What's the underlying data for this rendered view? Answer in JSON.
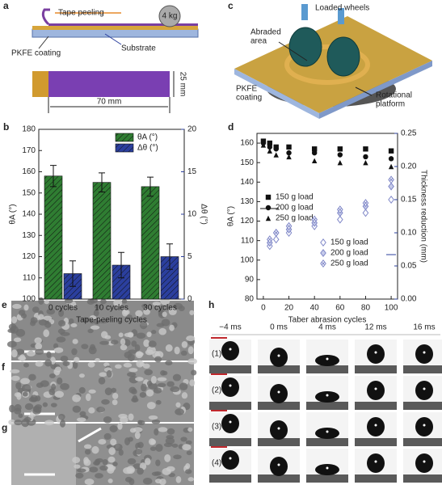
{
  "panel_letters": [
    "a",
    "b",
    "c",
    "d",
    "e",
    "f",
    "g",
    "h"
  ],
  "panel_a": {
    "tape_peeling": "Tape peeling",
    "weight": "4 kg",
    "coating": "PKFE coating",
    "substrate": "Substrate",
    "width": "25 mm",
    "length": "70 mm"
  },
  "panel_c": {
    "wheels": "Loaded wheels",
    "area": [
      "Abraded",
      "area"
    ],
    "coating": [
      "PKFE",
      "coating"
    ],
    "platform": [
      "Rotational",
      "platform"
    ]
  },
  "panel_h": {
    "times": [
      "−4 ms",
      "0 ms",
      "4 ms",
      "12 ms",
      "16 ms"
    ],
    "rows": [
      "(1)",
      "(2)",
      "(3)",
      "(4)"
    ]
  },
  "chart_data": [
    {
      "type": "bar",
      "xlabel": "Tape-peeling cycles",
      "ylabel": "θA (°)",
      "y2label": "Δθ (°)",
      "categories": [
        "0 cycles",
        "10 cycles",
        "30 cycles"
      ],
      "series": [
        {
          "name": "θA (°)",
          "color": "#2f7d32",
          "values": [
            158,
            155,
            153
          ],
          "errors": [
            5,
            4.5,
            4.5
          ]
        },
        {
          "name": "Δθ (°)",
          "color": "#2b3f9e",
          "axis": "y2",
          "values": [
            3,
            4,
            5
          ],
          "errors": [
            1.5,
            1.5,
            1.5
          ]
        }
      ],
      "ylim": [
        100,
        180
      ],
      "yticks": [
        100,
        110,
        120,
        130,
        140,
        150,
        160,
        170,
        180
      ],
      "y2lim": [
        0,
        20
      ],
      "y2ticks": [
        0,
        5,
        10,
        15,
        20
      ],
      "legend": "upper right"
    },
    {
      "type": "scatter",
      "xlabel": "Taber abrasion cycles",
      "ylabel": "θA (°)",
      "y2label": "Thickness reduction (mm)",
      "series": [
        {
          "name": "150 g load",
          "color": "#111111",
          "marker": "square",
          "x": [
            0,
            5,
            10,
            20,
            40,
            60,
            80,
            100
          ],
          "values": [
            161,
            160,
            158,
            158,
            157,
            157,
            157,
            156
          ]
        },
        {
          "name": "200 g load",
          "color": "#111111",
          "marker": "circle",
          "x": [
            0,
            5,
            10,
            20,
            40,
            60,
            80,
            100
          ],
          "values": [
            160,
            158,
            157,
            155,
            155,
            154,
            153,
            152
          ]
        },
        {
          "name": "250 g load",
          "color": "#111111",
          "marker": "triangle",
          "x": [
            0,
            5,
            10,
            20,
            40,
            60,
            80,
            100
          ],
          "values": [
            159,
            156,
            154,
            153,
            151,
            150,
            150,
            148
          ]
        },
        {
          "name": "150 g load",
          "color": "#8088c8",
          "marker": "diamond-open",
          "axis": "y2",
          "x": [
            5,
            10,
            20,
            40,
            60,
            80,
            100
          ],
          "values": [
            0.08,
            0.09,
            0.1,
            0.11,
            0.12,
            0.13,
            0.15
          ]
        },
        {
          "name": "200 g load",
          "color": "#8088c8",
          "marker": "diamond",
          "axis": "y2",
          "x": [
            5,
            10,
            20,
            40,
            60,
            80,
            100
          ],
          "values": [
            0.085,
            0.1,
            0.105,
            0.115,
            0.13,
            0.14,
            0.17
          ]
        },
        {
          "name": "250 g load",
          "color": "#8088c8",
          "marker": "diamond-x",
          "axis": "y2",
          "x": [
            5,
            10,
            20,
            40,
            60,
            80,
            100
          ],
          "values": [
            0.09,
            0.1,
            0.11,
            0.12,
            0.135,
            0.145,
            0.18
          ]
        }
      ],
      "xlim": [
        -5,
        105
      ],
      "xticks": [
        0,
        20,
        40,
        60,
        80,
        100
      ],
      "ylim": [
        80,
        165
      ],
      "yticks": [
        80,
        90,
        100,
        110,
        120,
        130,
        140,
        150,
        160
      ],
      "y2lim": [
        0,
        0.25
      ],
      "y2ticks": [
        {
          "value": 0,
          "label": "0.00"
        },
        0.05,
        {
          "value": 0.1,
          "label": "0.10"
        },
        0.15,
        {
          "value": 0.2,
          "label": "0.20"
        },
        0.25
      ]
    }
  ]
}
